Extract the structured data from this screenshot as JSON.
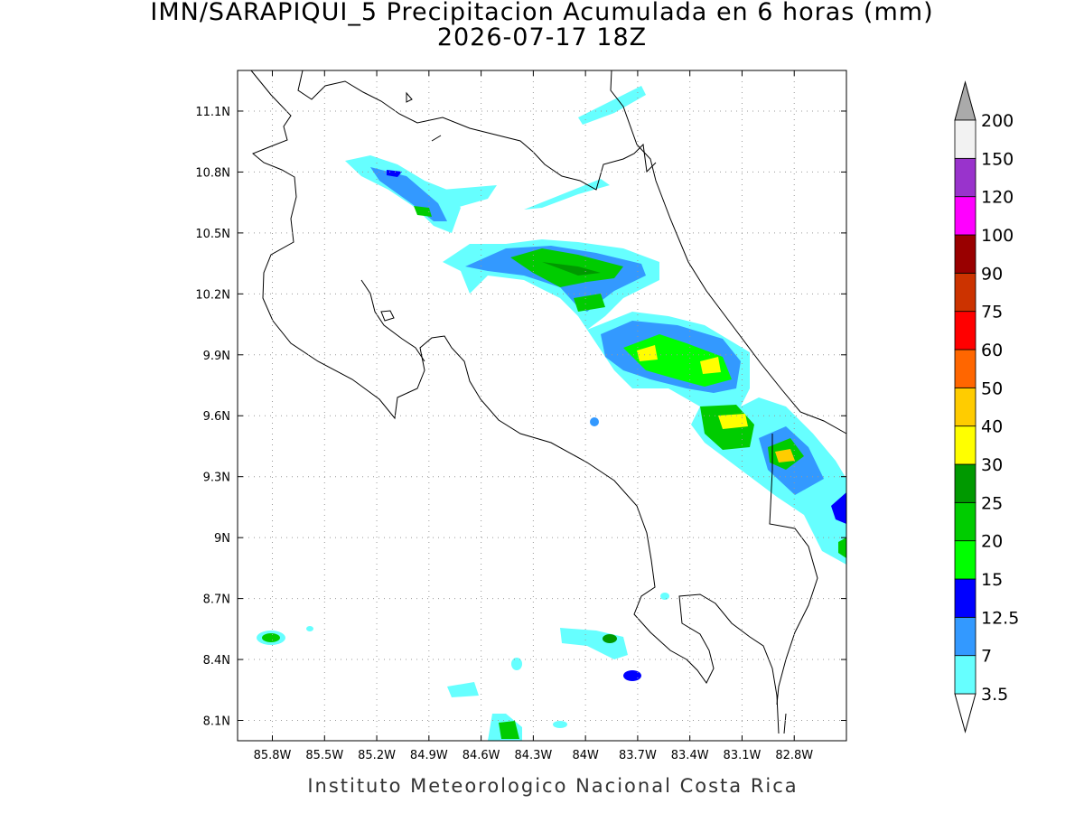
{
  "map": {
    "title": "IMN/SARAPIQUI_5 Precipitacion Acumulada en 6 horas (mm)",
    "subtitle": "2026-07-17 18Z",
    "xlim": [
      -86.0,
      -82.5
    ],
    "ylim": [
      8.0,
      11.3
    ],
    "xticks": [
      {
        "value": -85.8,
        "label": "85.8W"
      },
      {
        "value": -85.5,
        "label": "85.5W"
      },
      {
        "value": -85.2,
        "label": "85.2W"
      },
      {
        "value": -84.9,
        "label": "84.9W"
      },
      {
        "value": -84.6,
        "label": "84.6W"
      },
      {
        "value": -84.3,
        "label": "84.3W"
      },
      {
        "value": -84.0,
        "label": "84W"
      },
      {
        "value": -83.7,
        "label": "83.7W"
      },
      {
        "value": -83.4,
        "label": "83.4W"
      },
      {
        "value": -83.1,
        "label": "83.1W"
      },
      {
        "value": -82.8,
        "label": "82.8W"
      }
    ],
    "yticks": [
      {
        "value": 8.1,
        "label": "8.1N"
      },
      {
        "value": 8.4,
        "label": "8.4N"
      },
      {
        "value": 8.7,
        "label": "8.7N"
      },
      {
        "value": 9.0,
        "label": "9N"
      },
      {
        "value": 9.3,
        "label": "9.3N"
      },
      {
        "value": 9.6,
        "label": "9.6N"
      },
      {
        "value": 9.9,
        "label": "9.9N"
      },
      {
        "value": 10.2,
        "label": "10.2N"
      },
      {
        "value": 10.5,
        "label": "10.5N"
      },
      {
        "value": 10.8,
        "label": "10.8N"
      },
      {
        "value": 11.1,
        "label": "11.1N"
      }
    ],
    "grid": true,
    "colorbar": {
      "levels": [
        3.5,
        7,
        12.5,
        15,
        20,
        25,
        30,
        40,
        50,
        60,
        75,
        90,
        100,
        120,
        150,
        200
      ],
      "colors": [
        "#66ffff",
        "#3399ff",
        "#0000ff",
        "#00ff00",
        "#00cc00",
        "#009900",
        "#ffff00",
        "#ffcc00",
        "#ff6600",
        "#ff0000",
        "#cc3300",
        "#990000",
        "#ff00ff",
        "#9933cc",
        "#f2f2f2"
      ],
      "under_color": "#ffffff",
      "over_color": "#aaaaaa"
    },
    "credit": "Instituto Meteorologico Nacional Costa Rica"
  }
}
